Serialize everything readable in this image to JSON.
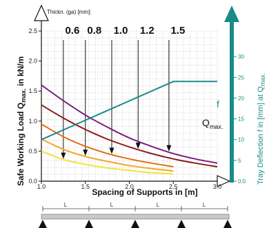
{
  "chart_data": {
    "type": "line",
    "top_label": "Thickn. (ga) [mm]:",
    "xlabel": "Spacing of Supports in [m]",
    "ylabel_main": "Safe Working Load Q",
    "ylabel_sub": "max.",
    "ylabel_unit": " in kN/m",
    "y2label_main": "Tray Deflection f in [mm] at Q",
    "y2label_sub": "max.",
    "xlim": [
      1.0,
      3.0
    ],
    "ylim": [
      0.0,
      2.5
    ],
    "y2lim": [
      0,
      35
    ],
    "x_ticks": [
      "1.0",
      "1.5",
      "2.0",
      "2.5",
      "3.0"
    ],
    "y_ticks": [
      "0.0",
      "0.5",
      "1.0",
      "1.5",
      "2.0",
      "2.5"
    ],
    "y2_ticks": [
      "0.0",
      "5",
      "10",
      "15",
      "20",
      "25",
      "30"
    ],
    "grid": true,
    "thickness_labels": [
      {
        "label": "0.6",
        "x": 1.25
      },
      {
        "label": "0.8",
        "x": 1.5
      },
      {
        "label": "1.0",
        "x": 1.8
      },
      {
        "label": "1.2",
        "x": 2.1
      },
      {
        "label": "1.5",
        "x": 2.45
      }
    ],
    "series": [
      {
        "color": "#f2e23a",
        "x": [
          1.0,
          1.25,
          1.5,
          1.75,
          2.0,
          2.25,
          2.5
        ],
        "y": [
          0.5,
          0.36,
          0.28,
          0.22,
          0.18,
          0.14,
          0.12
        ]
      },
      {
        "color": "#f5a623",
        "x": [
          1.0,
          1.25,
          1.5,
          1.75,
          2.0,
          2.25,
          2.5
        ],
        "y": [
          0.7,
          0.53,
          0.41,
          0.33,
          0.26,
          0.21,
          0.17
        ]
      },
      {
        "color": "#e06d10",
        "x": [
          1.0,
          1.25,
          1.5,
          1.75,
          2.0,
          2.25,
          2.5
        ],
        "y": [
          0.95,
          0.74,
          0.58,
          0.46,
          0.37,
          0.3,
          0.24
        ]
      },
      {
        "color": "#8b1a1a",
        "x": [
          1.0,
          1.25,
          1.5,
          1.75,
          2.0,
          2.25,
          2.5,
          2.75,
          3.0
        ],
        "y": [
          1.27,
          1.05,
          0.86,
          0.7,
          0.57,
          0.46,
          0.37,
          0.3,
          0.24
        ]
      },
      {
        "color": "#7a1f7a",
        "x": [
          1.0,
          1.25,
          1.5,
          1.75,
          2.0,
          2.25,
          2.5,
          2.75,
          3.0
        ],
        "y": [
          1.6,
          1.34,
          1.1,
          0.9,
          0.72,
          0.58,
          0.46,
          0.37,
          0.3
        ]
      }
    ],
    "deflection": {
      "label": "f",
      "color": "#1a8a8a",
      "x": [
        1.0,
        2.5,
        3.0
      ],
      "y": [
        10,
        24,
        24
      ]
    },
    "qmax_label": "Q",
    "qmax_sub": "max.",
    "span_labels": [
      "L",
      "L",
      "L",
      "L"
    ]
  }
}
